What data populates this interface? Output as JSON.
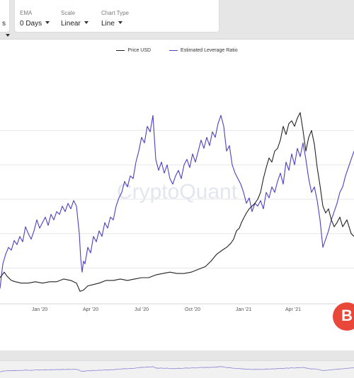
{
  "toolbar": {
    "ema": {
      "label": "EMA",
      "value": "0 Days"
    },
    "scale": {
      "label": "Scale",
      "value": "Linear"
    },
    "chart_type": {
      "label": "Chart Type",
      "value": "Line"
    },
    "first_value_fragment": "s"
  },
  "colors": {
    "price": "#222222",
    "leverage": "#4b3fc4",
    "grid": "#e7e7e7",
    "watermark": "#e2e6ee"
  },
  "watermark": "CryptoQuant",
  "chart_data": {
    "type": "line",
    "legend_placement": "top-center",
    "grid": true,
    "x_ticks": [
      "Jan '20",
      "Apr '20",
      "Jul '20",
      "Oct '20",
      "Jan '21",
      "Apr '21"
    ],
    "series": [
      {
        "name": "Price USD",
        "color": "#222222",
        "points": [
          [
            0,
            0.18
          ],
          [
            6,
            0.22
          ],
          [
            10,
            0.19
          ],
          [
            16,
            0.16
          ],
          [
            22,
            0.15
          ],
          [
            30,
            0.14
          ],
          [
            40,
            0.14
          ],
          [
            50,
            0.15
          ],
          [
            60,
            0.14
          ],
          [
            70,
            0.15
          ],
          [
            80,
            0.15
          ],
          [
            90,
            0.17
          ],
          [
            100,
            0.16
          ],
          [
            108,
            0.14
          ],
          [
            113,
            0.08
          ],
          [
            118,
            0.09
          ],
          [
            124,
            0.12
          ],
          [
            132,
            0.13
          ],
          [
            140,
            0.14
          ],
          [
            150,
            0.16
          ],
          [
            160,
            0.16
          ],
          [
            170,
            0.17
          ],
          [
            180,
            0.16
          ],
          [
            190,
            0.17
          ],
          [
            200,
            0.18
          ],
          [
            210,
            0.18
          ],
          [
            220,
            0.2
          ],
          [
            230,
            0.21
          ],
          [
            240,
            0.22
          ],
          [
            250,
            0.21
          ],
          [
            260,
            0.21
          ],
          [
            270,
            0.22
          ],
          [
            280,
            0.24
          ],
          [
            290,
            0.26
          ],
          [
            298,
            0.3
          ],
          [
            306,
            0.35
          ],
          [
            314,
            0.38
          ],
          [
            320,
            0.4
          ],
          [
            326,
            0.43
          ],
          [
            330,
            0.46
          ],
          [
            334,
            0.52
          ],
          [
            338,
            0.54
          ],
          [
            341,
            0.58
          ],
          [
            345,
            0.62
          ],
          [
            348,
            0.65
          ],
          [
            352,
            0.68
          ],
          [
            356,
            0.7
          ],
          [
            360,
            0.72
          ],
          [
            364,
            0.75
          ],
          [
            368,
            0.8
          ],
          [
            372,
            0.9
          ],
          [
            376,
            0.98
          ],
          [
            380,
            1.05
          ],
          [
            384,
            1.02
          ],
          [
            388,
            1.1
          ],
          [
            392,
            1.12
          ],
          [
            396,
            1.18
          ],
          [
            400,
            1.28
          ],
          [
            404,
            1.22
          ],
          [
            408,
            1.3
          ],
          [
            412,
            1.32
          ],
          [
            416,
            1.28
          ],
          [
            420,
            1.34
          ],
          [
            424,
            1.38
          ],
          [
            428,
            1.25
          ],
          [
            432,
            1.1
          ],
          [
            436,
            1.2
          ],
          [
            440,
            1.25
          ],
          [
            444,
            1.15
          ],
          [
            448,
            0.98
          ],
          [
            452,
            0.85
          ],
          [
            456,
            0.7
          ],
          [
            460,
            0.65
          ],
          [
            464,
            0.68
          ],
          [
            468,
            0.6
          ],
          [
            472,
            0.55
          ],
          [
            476,
            0.58
          ],
          [
            480,
            0.62
          ],
          [
            484,
            0.55
          ],
          [
            490,
            0.6
          ],
          [
            496,
            0.5
          ],
          [
            500,
            0.48
          ]
        ]
      },
      {
        "name": "Estimated Leverage Ratio",
        "color": "#4b3fc4",
        "points": [
          [
            0,
            0.1
          ],
          [
            4,
            0.28
          ],
          [
            8,
            0.35
          ],
          [
            12,
            0.4
          ],
          [
            16,
            0.38
          ],
          [
            20,
            0.45
          ],
          [
            24,
            0.42
          ],
          [
            28,
            0.48
          ],
          [
            32,
            0.44
          ],
          [
            36,
            0.55
          ],
          [
            40,
            0.5
          ],
          [
            44,
            0.46
          ],
          [
            48,
            0.52
          ],
          [
            52,
            0.6
          ],
          [
            56,
            0.54
          ],
          [
            60,
            0.58
          ],
          [
            64,
            0.62
          ],
          [
            68,
            0.56
          ],
          [
            72,
            0.64
          ],
          [
            76,
            0.6
          ],
          [
            80,
            0.66
          ],
          [
            84,
            0.64
          ],
          [
            88,
            0.7
          ],
          [
            92,
            0.66
          ],
          [
            96,
            0.72
          ],
          [
            100,
            0.68
          ],
          [
            104,
            0.74
          ],
          [
            108,
            0.7
          ],
          [
            112,
            0.5
          ],
          [
            114,
            0.32
          ],
          [
            116,
            0.22
          ],
          [
            118,
            0.3
          ],
          [
            120,
            0.28
          ],
          [
            124,
            0.4
          ],
          [
            128,
            0.36
          ],
          [
            132,
            0.48
          ],
          [
            136,
            0.44
          ],
          [
            140,
            0.52
          ],
          [
            144,
            0.48
          ],
          [
            148,
            0.58
          ],
          [
            152,
            0.54
          ],
          [
            156,
            0.62
          ],
          [
            160,
            0.6
          ],
          [
            164,
            0.7
          ],
          [
            168,
            0.76
          ],
          [
            172,
            0.8
          ],
          [
            176,
            0.88
          ],
          [
            180,
            0.84
          ],
          [
            184,
            0.92
          ],
          [
            188,
            0.9
          ],
          [
            192,
            1.02
          ],
          [
            196,
            1.1
          ],
          [
            200,
            1.2
          ],
          [
            204,
            1.16
          ],
          [
            208,
            1.28
          ],
          [
            212,
            1.24
          ],
          [
            216,
            1.36
          ],
          [
            220,
            1.04
          ],
          [
            224,
            0.96
          ],
          [
            228,
            1.02
          ],
          [
            232,
            0.94
          ],
          [
            236,
            1.0
          ],
          [
            240,
            0.9
          ],
          [
            244,
            0.86
          ],
          [
            248,
            0.92
          ],
          [
            252,
            0.96
          ],
          [
            256,
            0.9
          ],
          [
            260,
            1.0
          ],
          [
            264,
            1.04
          ],
          [
            268,
            0.98
          ],
          [
            272,
            1.08
          ],
          [
            276,
            1.02
          ],
          [
            280,
            1.1
          ],
          [
            284,
            1.18
          ],
          [
            288,
            1.12
          ],
          [
            292,
            1.2
          ],
          [
            296,
            1.14
          ],
          [
            300,
            1.24
          ],
          [
            304,
            1.2
          ],
          [
            308,
            1.3
          ],
          [
            312,
            1.36
          ],
          [
            316,
            1.28
          ],
          [
            320,
            1.1
          ],
          [
            324,
            1.14
          ],
          [
            328,
            1.0
          ],
          [
            332,
            0.94
          ],
          [
            336,
            0.9
          ],
          [
            340,
            0.86
          ],
          [
            344,
            0.8
          ],
          [
            348,
            0.72
          ],
          [
            352,
            0.76
          ],
          [
            356,
            0.66
          ],
          [
            360,
            0.72
          ],
          [
            364,
            0.7
          ],
          [
            368,
            0.74
          ],
          [
            372,
            0.68
          ],
          [
            376,
            0.8
          ],
          [
            380,
            0.76
          ],
          [
            384,
            0.84
          ],
          [
            388,
            0.8
          ],
          [
            392,
            0.88
          ],
          [
            396,
            0.94
          ],
          [
            400,
            0.86
          ],
          [
            404,
            1.02
          ],
          [
            408,
            0.96
          ],
          [
            412,
            1.08
          ],
          [
            416,
            1.0
          ],
          [
            420,
            1.12
          ],
          [
            424,
            1.06
          ],
          [
            428,
            1.16
          ],
          [
            432,
            1.04
          ],
          [
            436,
            0.9
          ],
          [
            440,
            0.8
          ],
          [
            444,
            0.84
          ],
          [
            448,
            0.74
          ],
          [
            452,
            0.6
          ],
          [
            456,
            0.4
          ],
          [
            460,
            0.46
          ],
          [
            464,
            0.52
          ],
          [
            468,
            0.6
          ],
          [
            472,
            0.66
          ],
          [
            476,
            0.72
          ],
          [
            480,
            0.8
          ],
          [
            484,
            0.84
          ],
          [
            488,
            0.92
          ],
          [
            492,
            0.98
          ],
          [
            496,
            1.04
          ],
          [
            500,
            1.1
          ]
        ]
      }
    ]
  }
}
